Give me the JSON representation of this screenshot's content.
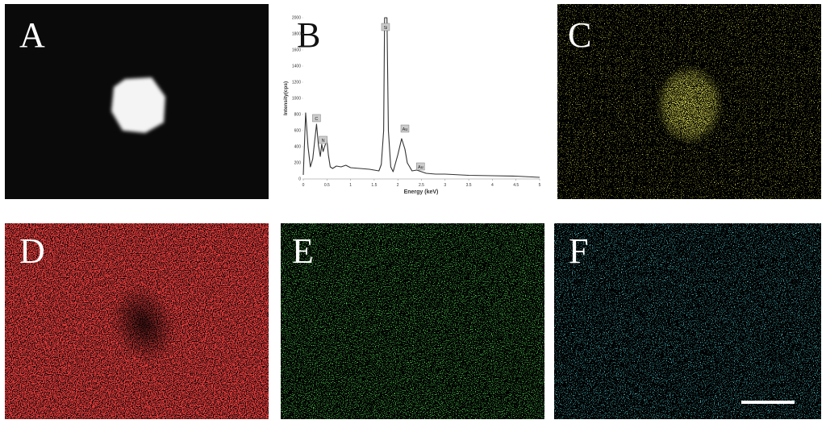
{
  "panels": {
    "labels": [
      "A",
      "B",
      "C",
      "D",
      "E",
      "F"
    ]
  },
  "chart_data": {
    "type": "line",
    "x_label": "Energy (keV)",
    "y_label": "Intensity(cps)",
    "x": [
      0,
      0.05,
      0.1,
      0.15,
      0.2,
      0.25,
      0.28,
      0.32,
      0.36,
      0.39,
      0.42,
      0.45,
      0.5,
      0.53,
      0.57,
      0.62,
      0.7,
      0.8,
      0.9,
      1.0,
      1.2,
      1.4,
      1.6,
      1.65,
      1.7,
      1.72,
      1.74,
      1.77,
      1.8,
      1.85,
      1.9,
      2.0,
      2.08,
      2.15,
      2.2,
      2.3,
      2.4,
      2.5,
      2.6,
      2.8,
      3.0,
      3.5,
      4.0,
      4.5,
      5.0
    ],
    "series": [
      {
        "color": "#333333",
        "values": [
          50,
          820,
          400,
          150,
          250,
          520,
          680,
          420,
          280,
          430,
          340,
          400,
          480,
          300,
          150,
          130,
          160,
          150,
          170,
          140,
          130,
          120,
          100,
          180,
          600,
          2000,
          2000,
          2000,
          600,
          150,
          90,
          300,
          500,
          370,
          200,
          100,
          110,
          90,
          70,
          60,
          60,
          45,
          40,
          35,
          20
        ]
      }
    ],
    "xlim": [
      0,
      5
    ],
    "ylim": [
      0,
      2000
    ],
    "xticks": [
      0,
      0.5,
      1,
      1.5,
      2,
      2.5,
      3,
      3.5,
      4,
      4.5,
      5
    ],
    "yticks": [
      0,
      200,
      400,
      600,
      800,
      1000,
      1200,
      1400,
      1600,
      1800,
      2000
    ],
    "annotations": [
      {
        "text": "C",
        "x": 0.28,
        "y": 750
      },
      {
        "text": "N",
        "x": 0.42,
        "y": 480
      },
      {
        "text": "Si",
        "x": 1.74,
        "y": 1880
      },
      {
        "text": "Au",
        "x": 2.15,
        "y": 620
      },
      {
        "text": "Au",
        "x": 2.48,
        "y": 150
      }
    ]
  }
}
